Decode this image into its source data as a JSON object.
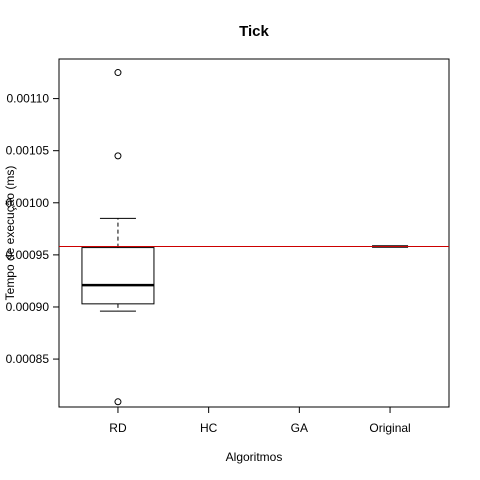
{
  "chart_data": {
    "type": "boxplot",
    "title": "Tick",
    "xlabel": "Algoritmos",
    "ylabel": "Tempo de execução (ms)",
    "categories": [
      "RD",
      "HC",
      "GA",
      "Original"
    ],
    "ylim": [
      0.000804,
      0.001138
    ],
    "yticks": [
      {
        "value": 0.00085,
        "label": "0.00085"
      },
      {
        "value": 0.0009,
        "label": "0.00090"
      },
      {
        "value": 0.00095,
        "label": "0.00095"
      },
      {
        "value": 0.001,
        "label": "0.00100"
      },
      {
        "value": 0.00105,
        "label": "0.00105"
      },
      {
        "value": 0.0011,
        "label": "0.00110"
      }
    ],
    "boxes": [
      {
        "category": "RD",
        "whisker_low": 0.000896,
        "q1": 0.000903,
        "median": 0.000921,
        "q3": 0.000957,
        "whisker_high": 0.000985,
        "outliers": [
          0.001125,
          0.001045,
          0.000809
        ]
      },
      {
        "category": "Original",
        "whisker_low": 0.000958,
        "q1": 0.000958,
        "median": 0.000958,
        "q3": 0.000958,
        "whisker_high": 0.000958,
        "outliers": []
      }
    ],
    "reference_line": {
      "value": 0.000958,
      "color": "#cc0000"
    },
    "grid": false
  }
}
